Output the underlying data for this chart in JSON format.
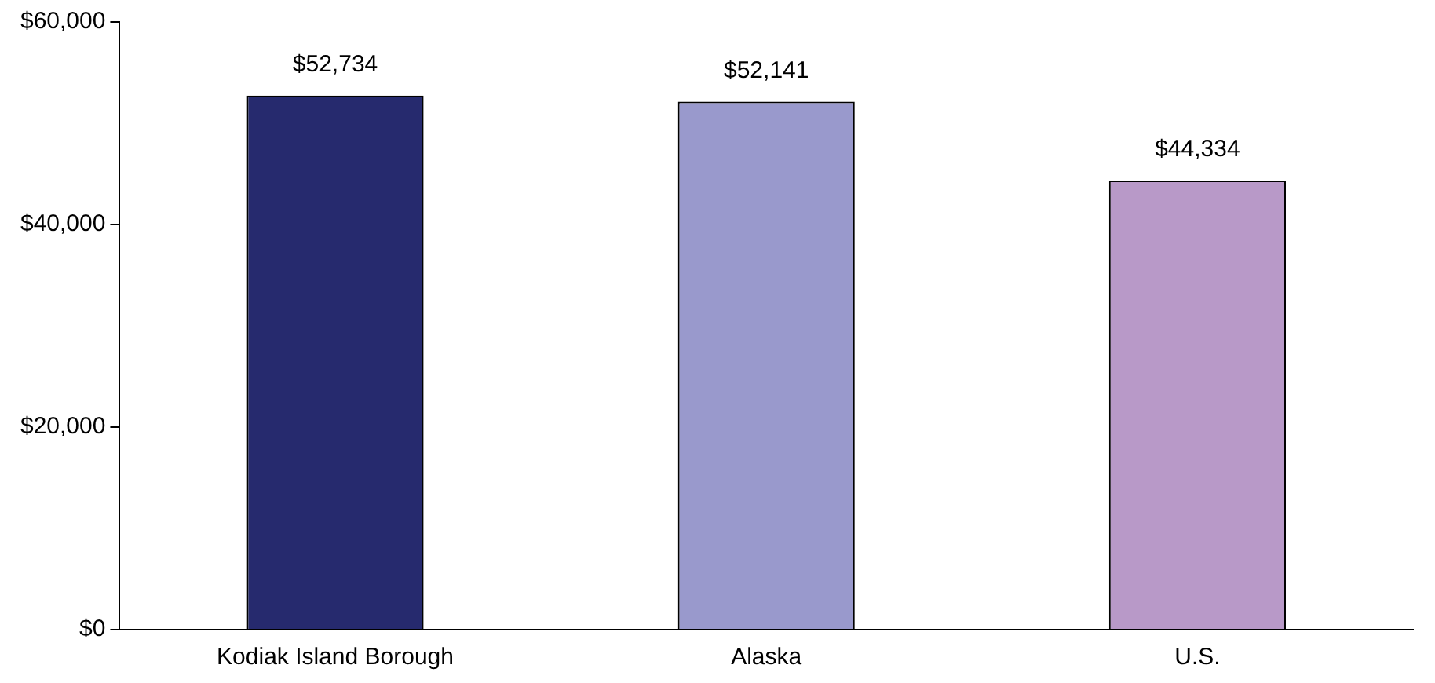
{
  "chart_data": {
    "type": "bar",
    "categories": [
      "Kodiak Island Borough",
      "Alaska",
      "U.S."
    ],
    "values": [
      52734,
      52141,
      44334
    ],
    "colors": [
      "#262a6e",
      "#9999cc",
      "#b899c8"
    ],
    "value_labels": [
      "$52,734",
      "$52,141",
      "$44,334"
    ],
    "ylim": [
      0,
      60000
    ],
    "yticks": [
      {
        "value": 0,
        "label": "$0"
      },
      {
        "value": 20000,
        "label": "$20,000"
      },
      {
        "value": 40000,
        "label": "$40,000"
      },
      {
        "value": 60000,
        "label": "$60,000"
      }
    ],
    "grid": false,
    "legend": false
  }
}
